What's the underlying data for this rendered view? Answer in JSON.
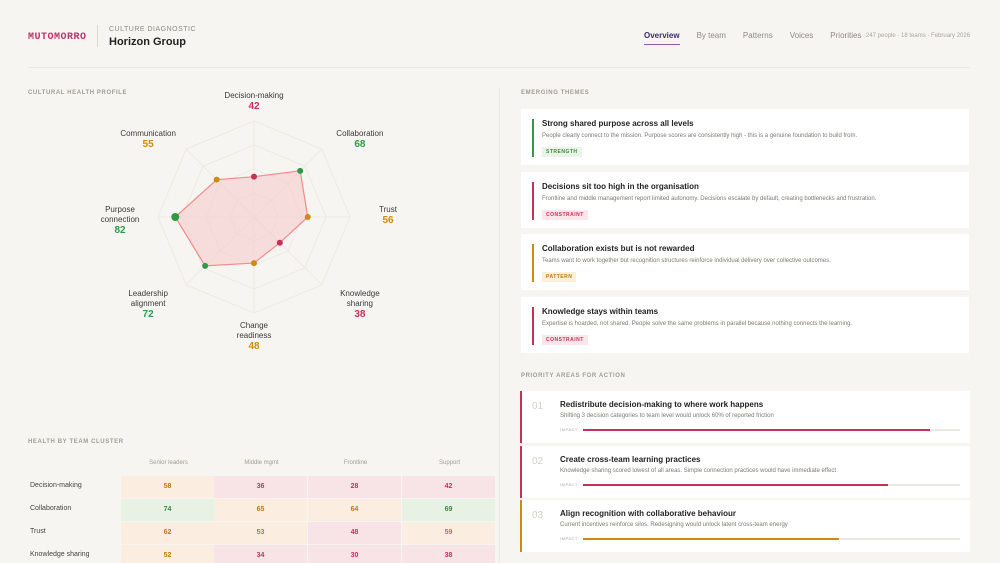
{
  "header": {
    "brand": "MUTOMORRO",
    "kicker": "CULTURE DIAGNOSTIC",
    "org": "Horizon Group",
    "tabs": [
      "Overview",
      "By team",
      "Patterns",
      "Voices",
      "Priorities"
    ],
    "active_tab": "Overview",
    "meta": "247 people · 18 teams · February 2026"
  },
  "sections": {
    "profile": "CULTURAL HEALTH PROFILE",
    "themes": "EMERGING THEMES",
    "priorities": "PRIORITY AREAS FOR ACTION",
    "cluster": "HEALTH BY TEAM CLUSTER"
  },
  "colors": {
    "green": "#2e9a48",
    "amber": "#d08a10",
    "crimson": "#c8305a",
    "fill": "#f6c9c9",
    "outline": "#f08c8c"
  },
  "radar": {
    "max": 100,
    "axes": [
      {
        "label": "Decision-making",
        "value": "42",
        "color": "crimson"
      },
      {
        "label": "Collaboration",
        "value": "68",
        "color": "green"
      },
      {
        "label": "Trust",
        "value": "56",
        "color": "amber"
      },
      {
        "label": "Knowledge sharing",
        "value": "38",
        "color": "crimson"
      },
      {
        "label": "Change readiness",
        "value": "48",
        "color": "amber"
      },
      {
        "label": "Leadership alignment",
        "value": "72",
        "color": "green"
      },
      {
        "label": "Purpose connection",
        "value": "82",
        "color": "green"
      },
      {
        "label": "Communication",
        "value": "55",
        "color": "amber"
      }
    ]
  },
  "themes": [
    {
      "title": "Strong shared purpose across all levels",
      "desc": "People clearly connect to the mission. Purpose scores are consistently high - this is a genuine foundation to build from.",
      "badge": "STRENGTH",
      "kind": "strength"
    },
    {
      "title": "Decisions sit too high in the organisation",
      "desc": "Frontline and middle management report limited autonomy. Decisions escalate by default, creating bottlenecks and frustration.",
      "badge": "CONSTRAINT",
      "kind": "constraint"
    },
    {
      "title": "Collaboration exists but is not rewarded",
      "desc": "Teams want to work together but recognition structures reinforce individual delivery over collective outcomes.",
      "badge": "PATTERN",
      "kind": "pattern"
    },
    {
      "title": "Knowledge stays within teams",
      "desc": "Expertise is hoarded, not shared. People solve the same problems in parallel because nothing connects the learning.",
      "badge": "CONSTRAINT",
      "kind": "constraint"
    }
  ],
  "priorities": [
    {
      "num": "01",
      "title": "Redistribute decision-making to where work happens",
      "desc": "Shifting 3 decision categories to team level would unlock 60% of reported friction",
      "impact_label": "IMPACT",
      "impact": 0.92,
      "color": "crimson"
    },
    {
      "num": "02",
      "title": "Create cross-team learning practices",
      "desc": "Knowledge sharing scored lowest of all areas. Simple connection practices would have immediate effect",
      "impact_label": "IMPACT",
      "impact": 0.81,
      "color": "crimson"
    },
    {
      "num": "03",
      "title": "Align recognition with collaborative behaviour",
      "desc": "Current incentives reinforce silos. Redesigning would unlock latent cross-team energy",
      "impact_label": "IMPACT",
      "impact": 0.68,
      "color": "amber"
    }
  ],
  "cluster": {
    "columns": [
      "Senior leaders",
      "Middle mgmt",
      "Frontline",
      "Support"
    ],
    "rows": [
      {
        "label": "Decision-making",
        "values": [
          "58",
          "36",
          "28",
          "42"
        ],
        "levels": [
          "mid",
          "low",
          "low",
          "low"
        ]
      },
      {
        "label": "Collaboration",
        "values": [
          "74",
          "65",
          "64",
          "69"
        ],
        "levels": [
          "high",
          "mid",
          "mid",
          "high"
        ]
      },
      {
        "label": "Trust",
        "values": [
          "62",
          "53",
          "48",
          "59"
        ],
        "levels": [
          "mid",
          "mid",
          "low",
          "mid"
        ]
      },
      {
        "label": "Knowledge sharing",
        "values": [
          "52",
          "34",
          "30",
          "38"
        ],
        "levels": [
          "mid",
          "low",
          "low",
          "low"
        ]
      }
    ]
  }
}
